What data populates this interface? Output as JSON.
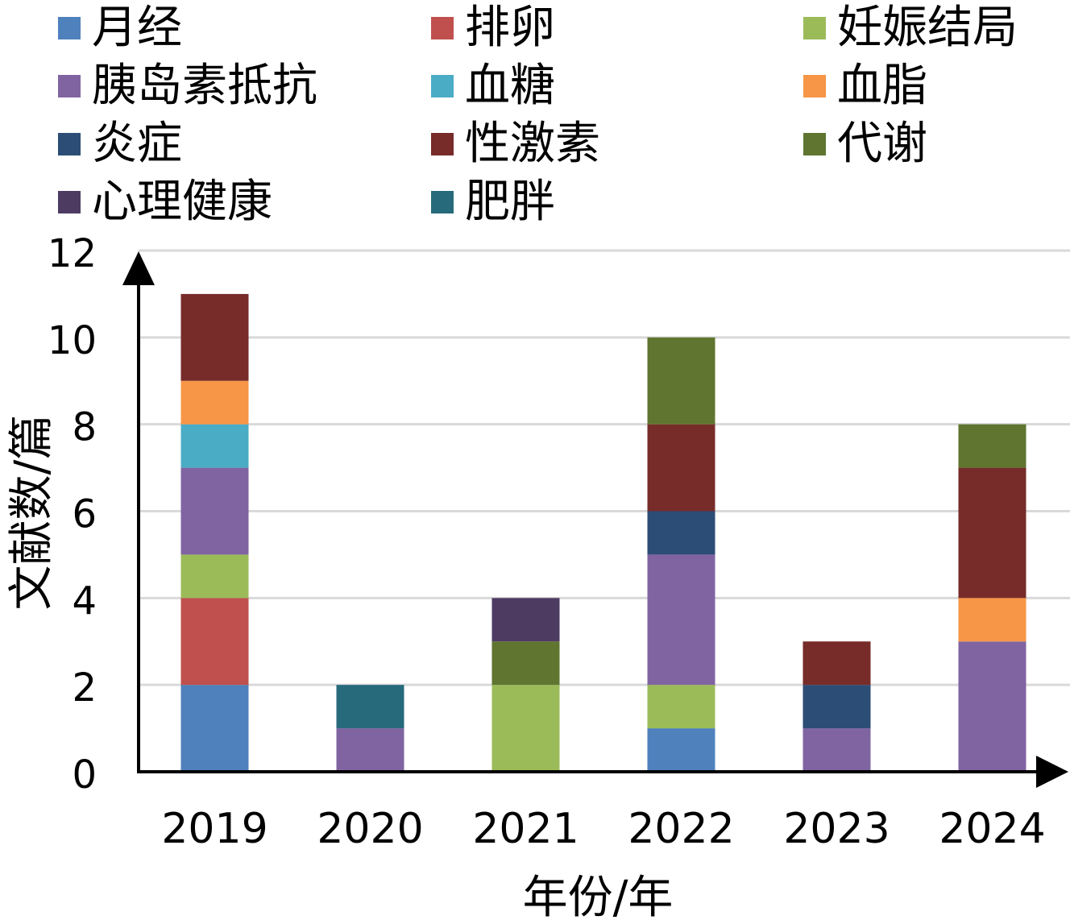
{
  "chart_data": {
    "type": "bar",
    "stacked": true,
    "title": "",
    "xlabel": "年份/年",
    "ylabel": "文献数/篇",
    "ylim": [
      0,
      12
    ],
    "yticks": [
      "0",
      "2",
      "4",
      "6",
      "8",
      "10",
      "12"
    ],
    "grid": true,
    "legend_position": "top",
    "categories": [
      "2019",
      "2020",
      "2021",
      "2022",
      "2023",
      "2024"
    ],
    "series": [
      {
        "name": "月经",
        "color": "#4F81BD",
        "values": [
          2,
          0,
          0,
          1,
          0,
          0
        ]
      },
      {
        "name": "排卵",
        "color": "#C0504D",
        "values": [
          2,
          0,
          0,
          0,
          0,
          0
        ]
      },
      {
        "name": "妊娠结局",
        "color": "#9BBB59",
        "values": [
          1,
          0,
          2,
          1,
          0,
          0
        ]
      },
      {
        "name": "胰岛素抵抗",
        "color": "#8064A2",
        "values": [
          2,
          1,
          0,
          3,
          1,
          3
        ]
      },
      {
        "name": "血糖",
        "color": "#4BACC6",
        "values": [
          1,
          0,
          0,
          0,
          0,
          0
        ]
      },
      {
        "name": "血脂",
        "color": "#F79646",
        "values": [
          1,
          0,
          0,
          0,
          0,
          1
        ]
      },
      {
        "name": "炎症",
        "color": "#2C4D75",
        "values": [
          0,
          0,
          0,
          1,
          1,
          0
        ]
      },
      {
        "name": "性激素",
        "color": "#772C2A",
        "values": [
          2,
          0,
          0,
          2,
          1,
          3
        ]
      },
      {
        "name": "代谢",
        "color": "#5F7530",
        "values": [
          0,
          0,
          1,
          2,
          0,
          1
        ]
      },
      {
        "name": "心理健康",
        "color": "#4D3B62",
        "values": [
          0,
          0,
          1,
          0,
          0,
          0
        ]
      },
      {
        "name": "肥胖",
        "color": "#276A7C",
        "values": [
          0,
          1,
          0,
          0,
          0,
          0
        ]
      }
    ]
  }
}
